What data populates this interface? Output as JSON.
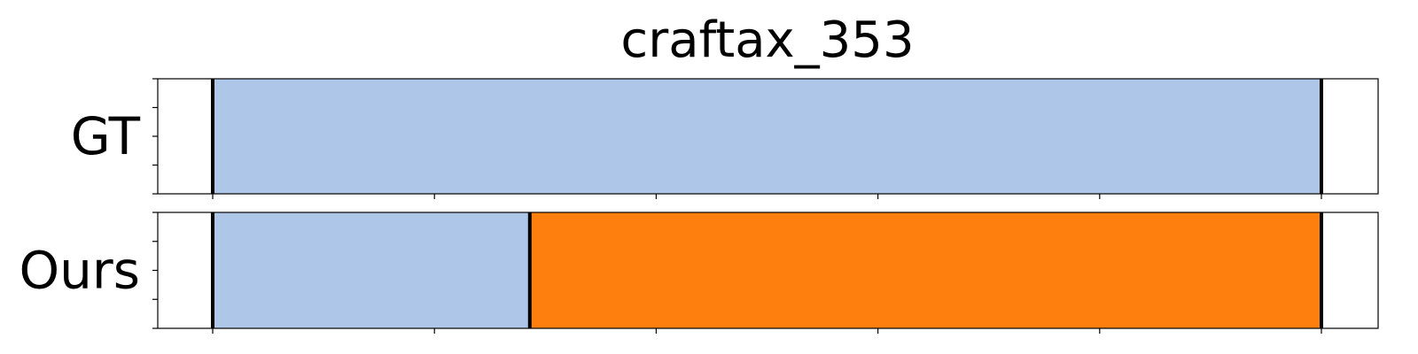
{
  "chart_data": {
    "type": "bar",
    "title": "craftax_353",
    "xlim": [
      0,
      1.1
    ],
    "rows": [
      {
        "label": "GT",
        "segments": [
          {
            "start": 0.0,
            "end": 1.0,
            "color": "#aec7e8"
          }
        ],
        "boundaries": [
          0.0,
          1.0
        ]
      },
      {
        "label": "Ours",
        "segments": [
          {
            "start": 0.0,
            "end": 0.286,
            "color": "#aec7e8"
          },
          {
            "start": 0.286,
            "end": 1.0,
            "color": "#ff7f0e"
          }
        ],
        "boundaries": [
          0.0,
          0.286,
          1.0
        ]
      }
    ],
    "x_ticks": [
      0.0,
      0.2,
      0.4,
      0.6,
      0.8,
      1.0
    ],
    "y_ticks_per_row": 5,
    "grid": false,
    "legend": "none"
  }
}
